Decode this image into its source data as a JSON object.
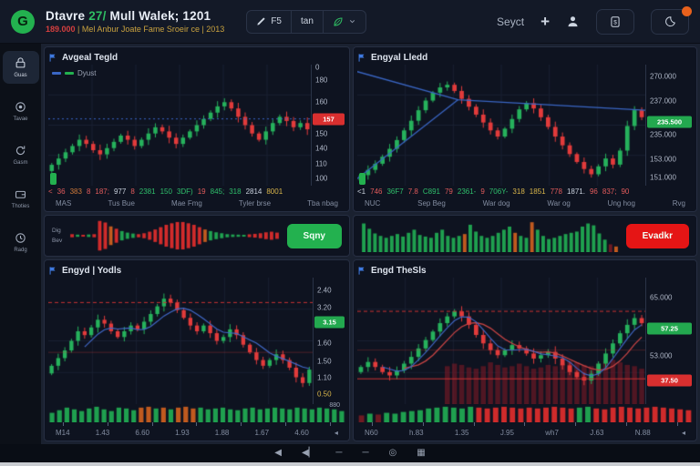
{
  "header": {
    "logo_letter": "G",
    "title": {
      "prefix": "Dtavre ",
      "accent": "27/",
      "rest": " Mull Walek; 1201"
    },
    "subtitle": {
      "price": "189.000",
      "rest": " | Mel Anbur Joate Fame Sroeir ce | 2013"
    },
    "toolbar": {
      "seg1_label": "F5",
      "seg2_label": "tan"
    },
    "select_label": "Seyct",
    "plus_glyph": "+"
  },
  "sidebar": {
    "items": [
      {
        "label": "Guas",
        "icon": "lock-icon",
        "active": true
      },
      {
        "label": "Tavae",
        "icon": "target-icon",
        "active": false
      },
      {
        "label": "Gasm",
        "icon": "refresh-icon",
        "active": false
      },
      {
        "label": "Thoties",
        "icon": "wallet-icon",
        "active": false
      },
      {
        "label": "Radg",
        "icon": "clock-icon",
        "active": false
      }
    ]
  },
  "panels": {
    "tl": {
      "title": "Avgeal Tegld",
      "legend_label": "Dyust",
      "stats": [
        [
          "<",
          "r"
        ],
        [
          "36",
          "r"
        ],
        [
          "383",
          "o"
        ],
        [
          "8",
          "r"
        ],
        [
          "187;",
          "r"
        ],
        [
          "977",
          "w"
        ],
        [
          "8",
          "r"
        ],
        [
          "2381",
          "g"
        ],
        [
          "150",
          "g"
        ],
        [
          "3DF)",
          "g"
        ],
        [
          "19",
          "r"
        ],
        [
          "845;",
          "g"
        ],
        [
          "318",
          "g"
        ],
        [
          "2814",
          "w"
        ],
        [
          "8001",
          "y"
        ]
      ],
      "dates": [
        "MAS",
        "Tus Bue",
        "Mae Fmg",
        "Tyler brse",
        "Tba nbag"
      ]
    },
    "tr": {
      "title": "Engyal Lledd",
      "stats": [
        [
          "<1",
          "w"
        ],
        [
          "746",
          "r"
        ],
        [
          "36F7",
          "g"
        ],
        [
          "7.8",
          "r"
        ],
        [
          "C891",
          "g"
        ],
        [
          "79",
          "r"
        ],
        [
          "2361-",
          "g"
        ],
        [
          "9",
          "r"
        ],
        [
          "706Y-",
          "g"
        ],
        [
          "318",
          "y"
        ],
        [
          "1851",
          "y"
        ],
        [
          "778",
          "r"
        ],
        [
          "1871.",
          "w"
        ],
        [
          "96",
          "r"
        ],
        [
          "837;",
          "r"
        ],
        [
          "90",
          "r"
        ]
      ],
      "dates": [
        "NUC",
        "Sep Beg",
        "War dog",
        "War og",
        "Ung hog",
        "Rvg"
      ]
    },
    "bl": {
      "title": "Engyd | Yodls",
      "strip_label": "880",
      "dates": [
        "M14",
        "1.43",
        "6.60",
        "1.93",
        "1.88",
        "1.67",
        "4.60",
        "◂"
      ]
    },
    "br": {
      "title": "Engd TheSls",
      "dates": [
        "N60",
        "h.83",
        "1.35",
        "J.95",
        "wh7",
        "J.63",
        "N.88",
        "◂"
      ]
    }
  },
  "middle": {
    "left": {
      "labels": [
        "Dig",
        "Bev"
      ],
      "button_label": "Sqny",
      "button_color": "#23b14f"
    },
    "right": {
      "labels": [],
      "button_label": "Evadkr",
      "button_color": "#e51515"
    }
  },
  "taskbar": {
    "icons": [
      "◀",
      "◀▏",
      "─",
      "─",
      "◎",
      "▦"
    ]
  },
  "colors": {
    "up": "#26b15c",
    "down": "#e23b3b",
    "accent_blue": "#3a66c4",
    "buy_green": "#23b14f",
    "sell_red": "#e51515",
    "panel_bg": "#0e1320",
    "page_bg": "#1a2130"
  },
  "chart_data": [
    {
      "id": "tl",
      "type": "candlestick",
      "ymin": 128,
      "ymax": 186,
      "wick": 1.8,
      "closes": [
        138,
        141,
        144,
        147,
        150,
        148,
        145,
        143,
        146,
        149,
        152,
        150,
        147,
        150,
        153,
        156,
        154,
        151,
        148,
        151,
        154,
        157,
        160,
        163,
        166,
        168,
        165,
        161,
        157,
        153,
        150,
        154,
        158,
        161,
        159,
        156,
        158,
        155
      ],
      "overlays": [
        {
          "type": "hline",
          "v": 160,
          "color": "#3a66c4",
          "dash": [
            2,
            3
          ],
          "lw": 1
        }
      ],
      "y_labels": [
        {
          "t": "0",
          "f": 0.02
        },
        {
          "t": "180",
          "f": 0.13
        },
        {
          "t": "160",
          "f": 0.31
        },
        {
          "t": "150",
          "f": 0.57
        },
        {
          "t": "140",
          "f": 0.69
        },
        {
          "t": "110",
          "f": 0.82
        },
        {
          "t": "100",
          "f": 0.94
        }
      ],
      "badges": [
        {
          "t": "157",
          "f": 0.45,
          "bg": "#d92f2f"
        }
      ]
    },
    {
      "id": "tr",
      "type": "candlestick",
      "ymin": 150,
      "ymax": 288,
      "wick": 4,
      "closes": [
        162,
        168,
        175,
        183,
        192,
        202,
        213,
        224,
        236,
        247,
        256,
        262,
        265,
        258,
        249,
        240,
        231,
        222,
        213,
        206,
        215,
        226,
        237,
        244,
        238,
        228,
        217,
        206,
        196,
        186,
        177,
        169,
        163,
        172,
        181,
        174,
        190,
        218,
        236,
        228
      ],
      "overlays": [
        {
          "type": "poly",
          "points": [
            [
              0,
              280
            ],
            [
              0.35,
              248
            ],
            [
              0.62,
              243
            ],
            [
              1,
              236
            ]
          ],
          "color": "#3a66c4",
          "lw": 1.3
        },
        {
          "type": "poly",
          "points": [
            [
              0,
              158
            ],
            [
              0.35,
              248
            ]
          ],
          "color": "#3a66c4",
          "lw": 1.3
        }
      ],
      "y_labels": [
        {
          "t": "270.000",
          "f": 0.1
        },
        {
          "t": "237.000",
          "f": 0.3
        },
        {
          "t": "235.000",
          "f": 0.58
        },
        {
          "t": "153.000",
          "f": 0.78
        },
        {
          "t": "151.000",
          "f": 0.93
        }
      ],
      "badges": [
        {
          "t": "235.500",
          "f": 0.47,
          "bg": "#23a84f"
        }
      ]
    },
    {
      "id": "bl",
      "type": "candlestick",
      "ymin": 0.55,
      "ymax": 3.85,
      "wick": 0.09,
      "closes": [
        1.55,
        1.75,
        1.95,
        2.2,
        2.45,
        2.35,
        2.55,
        2.75,
        2.65,
        2.45,
        2.3,
        2.45,
        2.6,
        2.5,
        2.7,
        2.9,
        3.1,
        3.3,
        3.2,
        3.0,
        2.8,
        2.6,
        2.45,
        2.6,
        2.4,
        2.2,
        2.3,
        2.5,
        2.35,
        2.1,
        1.9,
        1.7,
        1.55,
        1.7,
        1.85,
        1.7,
        1.5,
        1.25,
        1.1,
        1.45
      ],
      "overlays": [
        {
          "type": "hline",
          "v": 3.2,
          "color": "#cc3333",
          "dash": [
            4,
            3
          ],
          "lw": 1
        },
        {
          "type": "hline",
          "v": 1.9,
          "color": "rgba(204,60,60,0.35)",
          "lw": 1
        },
        {
          "type": "ma",
          "w": 6,
          "color": "#4169c8",
          "lw": 1.2
        }
      ],
      "y_labels": [
        {
          "t": "2.40",
          "f": 0.1
        },
        {
          "t": "3.20",
          "f": 0.24
        },
        {
          "t": "1.60",
          "f": 0.52
        },
        {
          "t": "1.50",
          "f": 0.66
        },
        {
          "t": "1.10",
          "f": 0.79
        },
        {
          "t": "0.50",
          "f": 0.92,
          "c": "#d8b54a"
        }
      ],
      "badges": [
        {
          "t": "3.15",
          "f": 0.35,
          "bg": "#23a84f"
        }
      ]
    },
    {
      "id": "br",
      "type": "candlestick",
      "ymin": 30,
      "ymax": 67.5,
      "wick": 1.1,
      "closes": [
        41,
        42.5,
        41,
        39.5,
        38.5,
        40,
        42,
        44,
        46.5,
        49,
        51.5,
        54,
        56,
        57.5,
        56,
        53.5,
        50.5,
        48,
        46,
        44.5,
        46,
        47.5,
        46.5,
        45,
        43.5,
        44.5,
        45.5,
        43.5,
        41.5,
        39.5,
        38,
        37,
        39,
        42,
        45,
        48,
        51,
        53.5,
        55.5,
        54
      ],
      "involume": {
        "start": 12,
        "color": "rgba(135,25,38,0.55)",
        "h": [
          0.3,
          0.32,
          0.31,
          0.29,
          0.28,
          0.3,
          0.33,
          0.31,
          0.29,
          0.3,
          0.32,
          0.3,
          0.28,
          0.29,
          0.31,
          0.3,
          0.32,
          0.34,
          0.33,
          0.31,
          0.3,
          0.32,
          0.34,
          0.35,
          0.33,
          0.31,
          0.3,
          0.28
        ]
      },
      "overlays": [
        {
          "type": "hline",
          "v": 57.5,
          "color": "#cc3333",
          "dash": [
            4,
            3
          ],
          "lw": 1
        },
        {
          "type": "hline",
          "v": 46,
          "color": "rgba(204,60,60,0.3)",
          "lw": 1
        },
        {
          "type": "hline",
          "v": 37.5,
          "color": "#cc3333",
          "lw": 1
        },
        {
          "type": "ma",
          "w": 7,
          "color": "#c84444",
          "lw": 1.3
        },
        {
          "type": "ma",
          "w": 4,
          "color": "#4169c8",
          "lw": 1.1
        }
      ],
      "y_labels": [
        {
          "t": "65.000",
          "f": 0.16
        },
        {
          "t": "53.000",
          "f": 0.62
        }
      ],
      "badges": [
        {
          "t": "57.25",
          "f": 0.4,
          "bg": "#23a84f"
        },
        {
          "t": "37.50",
          "f": 0.81,
          "bg": "#d92f2f"
        }
      ]
    },
    {
      "id": "ml",
      "type": "bar",
      "align": "center",
      "palette": [
        "#1fa04f",
        "#cf2b2b",
        "#c05a1f",
        "#6e1a22"
      ],
      "bars": [
        [
          0.1,
          1
        ],
        [
          0.07,
          0
        ],
        [
          0.06,
          1
        ],
        [
          0.08,
          0
        ],
        [
          0.1,
          1
        ],
        [
          0.95,
          1
        ],
        [
          0.85,
          1
        ],
        [
          0.6,
          2
        ],
        [
          0.45,
          1
        ],
        [
          0.3,
          0
        ],
        [
          0.2,
          0
        ],
        [
          0.14,
          0
        ],
        [
          0.1,
          1
        ],
        [
          0.16,
          1
        ],
        [
          0.26,
          1
        ],
        [
          0.4,
          1
        ],
        [
          0.55,
          1
        ],
        [
          0.7,
          1
        ],
        [
          0.8,
          1
        ],
        [
          0.88,
          1
        ],
        [
          0.88,
          1
        ],
        [
          0.8,
          1
        ],
        [
          0.7,
          1
        ],
        [
          0.55,
          1
        ],
        [
          0.4,
          2
        ],
        [
          0.3,
          0
        ],
        [
          0.22,
          0
        ],
        [
          0.16,
          0
        ],
        [
          0.1,
          0
        ],
        [
          0.08,
          0
        ],
        [
          0.07,
          0
        ],
        [
          0.06,
          0
        ],
        [
          0.09,
          1
        ],
        [
          0.12,
          1
        ],
        [
          0.16,
          1
        ],
        [
          0.22,
          1
        ],
        [
          0.26,
          1
        ],
        [
          0.2,
          1
        ]
      ]
    },
    {
      "id": "mr",
      "type": "bar",
      "align": "bottom",
      "palette": [
        "#1fa04f",
        "#cf2b2b",
        "#c05a1f",
        "#6e1a22"
      ],
      "bars": [
        [
          0.92,
          0
        ],
        [
          0.75,
          0
        ],
        [
          0.6,
          0
        ],
        [
          0.52,
          0
        ],
        [
          0.46,
          0
        ],
        [
          0.52,
          0
        ],
        [
          0.58,
          0
        ],
        [
          0.5,
          0
        ],
        [
          0.62,
          0
        ],
        [
          0.72,
          0
        ],
        [
          0.55,
          0
        ],
        [
          0.5,
          0
        ],
        [
          0.46,
          0
        ],
        [
          0.62,
          0
        ],
        [
          0.72,
          0
        ],
        [
          0.52,
          0
        ],
        [
          0.46,
          0
        ],
        [
          0.52,
          0
        ],
        [
          0.58,
          2
        ],
        [
          0.88,
          0
        ],
        [
          0.66,
          0
        ],
        [
          0.52,
          0
        ],
        [
          0.46,
          0
        ],
        [
          0.52,
          0
        ],
        [
          0.62,
          0
        ],
        [
          0.72,
          0
        ],
        [
          0.82,
          0
        ],
        [
          0.62,
          2
        ],
        [
          0.52,
          0
        ],
        [
          0.46,
          0
        ],
        [
          0.96,
          2
        ],
        [
          0.72,
          0
        ],
        [
          0.52,
          0
        ],
        [
          0.42,
          0
        ],
        [
          0.46,
          0
        ],
        [
          0.52,
          0
        ],
        [
          0.58,
          0
        ],
        [
          0.62,
          0
        ],
        [
          0.66,
          0
        ],
        [
          0.82,
          0
        ],
        [
          0.92,
          0
        ],
        [
          0.86,
          0
        ],
        [
          0.6,
          0
        ],
        [
          0.4,
          0
        ],
        [
          0.25,
          3
        ],
        [
          0.18,
          2
        ]
      ]
    },
    {
      "id": "bls",
      "type": "bar",
      "align": "bottom",
      "palette": [
        "#1fa04f",
        "#cf2b2b",
        "#c05a1f",
        "#6e1a22"
      ],
      "bars": [
        [
          0.55,
          0
        ],
        [
          0.7,
          0
        ],
        [
          0.85,
          0
        ],
        [
          0.75,
          0
        ],
        [
          0.65,
          0
        ],
        [
          0.8,
          0
        ],
        [
          0.9,
          0
        ],
        [
          0.75,
          0
        ],
        [
          0.65,
          0
        ],
        [
          0.85,
          0
        ],
        [
          0.8,
          0
        ],
        [
          0.7,
          0
        ],
        [
          0.85,
          2
        ],
        [
          0.9,
          2
        ],
        [
          0.8,
          0
        ],
        [
          0.85,
          2
        ],
        [
          0.75,
          0
        ],
        [
          0.85,
          2
        ],
        [
          0.9,
          2
        ],
        [
          0.8,
          2
        ],
        [
          0.85,
          0
        ],
        [
          0.75,
          0
        ],
        [
          0.8,
          0
        ],
        [
          0.85,
          0
        ],
        [
          0.75,
          0
        ],
        [
          0.7,
          0
        ],
        [
          0.8,
          0
        ],
        [
          0.85,
          0
        ],
        [
          0.75,
          0
        ],
        [
          0.8,
          0
        ],
        [
          0.85,
          0
        ],
        [
          0.8,
          0
        ],
        [
          0.75,
          0
        ],
        [
          0.85,
          0
        ],
        [
          0.8,
          0
        ],
        [
          0.75,
          0
        ],
        [
          0.85,
          0
        ],
        [
          0.8,
          0
        ],
        [
          0.75,
          0
        ],
        [
          0.65,
          0
        ]
      ]
    },
    {
      "id": "brs",
      "type": "bar",
      "align": "bottom",
      "palette": [
        "#1fa04f",
        "#cf2b2b",
        "#c05a1f",
        "#6e1a22"
      ],
      "bars": [
        [
          0.4,
          3
        ],
        [
          0.5,
          0
        ],
        [
          0.45,
          3
        ],
        [
          0.55,
          0
        ],
        [
          0.5,
          0
        ],
        [
          0.6,
          0
        ],
        [
          0.65,
          0
        ],
        [
          0.7,
          0
        ],
        [
          0.8,
          0
        ],
        [
          0.85,
          0
        ],
        [
          0.9,
          0
        ],
        [
          0.85,
          0
        ],
        [
          0.8,
          0
        ],
        [
          0.9,
          0
        ],
        [
          0.85,
          1
        ],
        [
          0.8,
          1
        ],
        [
          0.85,
          1
        ],
        [
          0.9,
          1
        ],
        [
          0.85,
          1
        ],
        [
          0.8,
          1
        ],
        [
          0.85,
          1
        ],
        [
          0.8,
          1
        ],
        [
          0.85,
          1
        ],
        [
          0.9,
          1
        ],
        [
          0.85,
          1
        ],
        [
          0.8,
          1
        ],
        [
          0.85,
          0
        ],
        [
          0.9,
          0
        ],
        [
          0.8,
          1
        ],
        [
          0.75,
          1
        ],
        [
          0.85,
          1
        ],
        [
          0.9,
          1
        ],
        [
          0.85,
          1
        ],
        [
          0.8,
          1
        ],
        [
          0.85,
          1
        ],
        [
          0.9,
          1
        ],
        [
          0.85,
          1
        ],
        [
          0.8,
          1
        ],
        [
          0.75,
          1
        ],
        [
          0.7,
          1
        ]
      ]
    }
  ]
}
